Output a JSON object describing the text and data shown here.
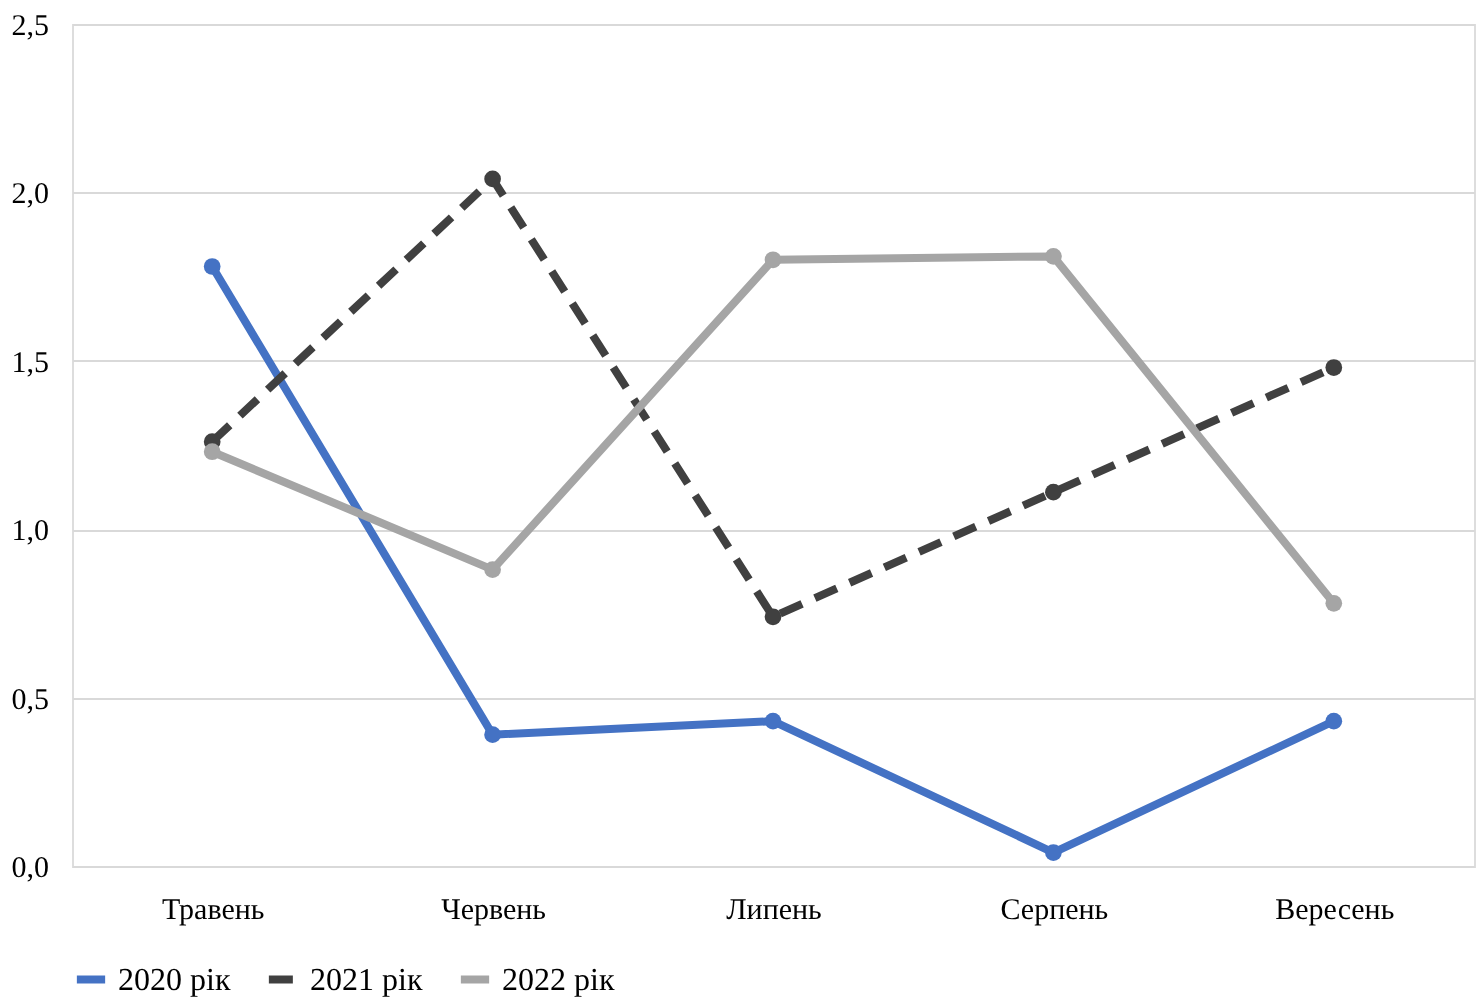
{
  "chart_data": {
    "type": "line",
    "categories": [
      "Травень",
      "Червень",
      "Липень",
      "Серпень",
      "Вересень"
    ],
    "series": [
      {
        "name": "2020 рік",
        "color": "#4472c4",
        "line_style": "solid",
        "values": [
          1.78,
          0.39,
          0.43,
          0.04,
          0.43
        ]
      },
      {
        "name": "2021 рік",
        "color": "#404040",
        "line_style": "dashed",
        "values": [
          1.26,
          2.04,
          0.74,
          1.11,
          1.48
        ]
      },
      {
        "name": "2022 рік",
        "color": "#a5a5a5",
        "line_style": "solid",
        "values": [
          1.23,
          0.88,
          1.8,
          1.81,
          0.78
        ]
      }
    ],
    "ylim": [
      0,
      2.5
    ],
    "yticks": [
      {
        "value": 0,
        "label": "0,0"
      },
      {
        "value": 0.5,
        "label": "0,5"
      },
      {
        "value": 1,
        "label": "1,0"
      },
      {
        "value": 1.5,
        "label": "1,5"
      },
      {
        "value": 2,
        "label": "2,0"
      },
      {
        "value": 2.5,
        "label": "2,5"
      }
    ],
    "grid": "y",
    "legend": "bottom",
    "marker": "circle"
  }
}
